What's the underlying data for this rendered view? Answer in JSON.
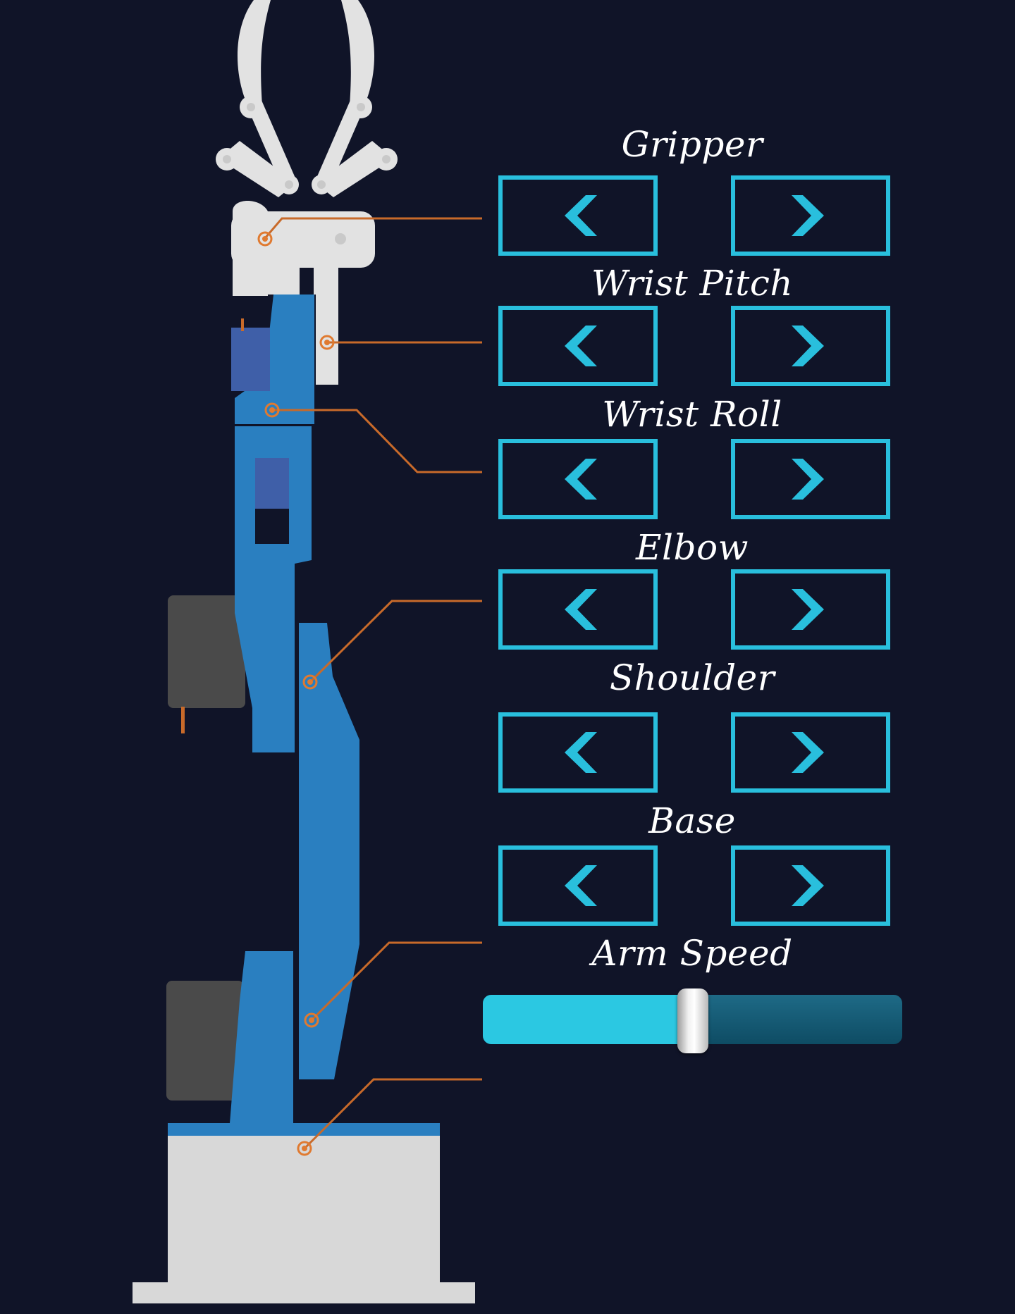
{
  "controls": [
    {
      "id": "gripper",
      "label": "Gripper"
    },
    {
      "id": "wrist-pitch",
      "label": "Wrist Pitch"
    },
    {
      "id": "wrist-roll",
      "label": "Wrist Roll"
    },
    {
      "id": "elbow",
      "label": "Elbow"
    },
    {
      "id": "shoulder",
      "label": "Shoulder"
    },
    {
      "id": "base",
      "label": "Base"
    }
  ],
  "speed": {
    "label": "Arm Speed",
    "value": 0.5
  },
  "icons": {
    "left": "chevron-left-icon",
    "right": "chevron-right-icon"
  },
  "colors": {
    "background": "#101428",
    "accent": "#29bfdd",
    "arm_blue": "#2a7fc0",
    "leader_line": "#c86a2a",
    "gripper": "#e2e2e2",
    "motor": "#4a4a4a",
    "base_block": "#d8d8d8"
  }
}
